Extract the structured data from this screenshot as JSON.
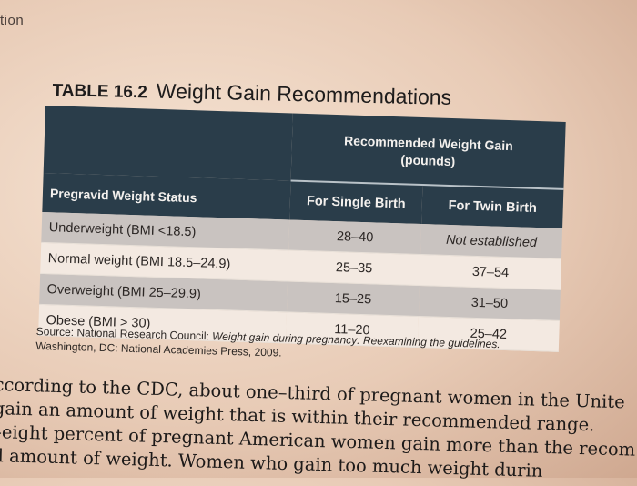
{
  "running_head": "tion",
  "table": {
    "number": "TABLE 16.2",
    "title": "Weight Gain Recommendations",
    "header_span": "Recommended Weight Gain",
    "header_span_unit": "(pounds)",
    "col_status": "Pregravid Weight Status",
    "col_single": "For Single Birth",
    "col_twin": "For Twin Birth",
    "rows": [
      {
        "status": "Underweight (BMI <18.5)",
        "single": "28–40",
        "twin": "Not established"
      },
      {
        "status": "Normal weight (BMI 18.5–24.9)",
        "single": "25–35",
        "twin": "37–54"
      },
      {
        "status": "Overweight (BMI 25–29.9)",
        "single": "15–25",
        "twin": "31–50"
      },
      {
        "status": "Obese (BMI > 30)",
        "single": "11–20",
        "twin": "25–42"
      }
    ],
    "source_prefix": "Source: National Research Council: ",
    "source_title": "Weight gain during pregnancy: Reexamining the guidelines.",
    "source_suffix": "Washington, DC: National Academies Press, 2009."
  },
  "prose_lines": [
    "ccording to the CDC, about one–third of pregnant women in the Unite",
    " gain an amount of weight that is within their recommended range.",
    "–eight percent of pregnant American women gain more than the recom",
    "d amount of weight. Women who gain too much weight durin"
  ]
}
